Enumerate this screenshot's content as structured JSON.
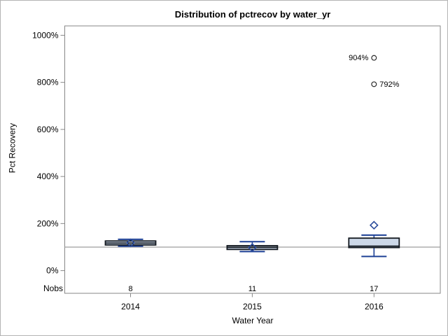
{
  "figure": {
    "title": "Distribution of pctrecov by water_yr"
  },
  "chart_data": {
    "type": "boxplot",
    "title": "Distribution of pctrecov by water_yr",
    "xlabel": "Water Year",
    "ylabel": "Pct Recovery",
    "categories": [
      "2014",
      "2015",
      "2016"
    ],
    "nobs_row_label": "Nobs",
    "nobs": [
      "8",
      "11",
      "17"
    ],
    "y_ticks": [
      0,
      200,
      400,
      600,
      800,
      1000
    ],
    "y_tick_labels": [
      "0%",
      "200%",
      "400%",
      "600%",
      "800%",
      "1000%"
    ],
    "ylim": [
      -95,
      1040
    ],
    "grid": false,
    "legend": "none",
    "reference_line": 100,
    "series": [
      {
        "category": "2014",
        "whisker_low": 104,
        "q1": 109,
        "median": 117,
        "q3": 126,
        "whisker_high": 133,
        "mean": 118,
        "outliers": []
      },
      {
        "category": "2015",
        "whisker_low": 81,
        "q1": 90,
        "median": 99,
        "q3": 106,
        "whisker_high": 123,
        "mean": 98,
        "outliers": []
      },
      {
        "category": "2016",
        "whisker_low": 60,
        "q1": 98,
        "median": 104,
        "q3": 138,
        "whisker_high": 151,
        "mean": 193,
        "outliers": [
          {
            "value": 904,
            "label": "904%",
            "label_side": "left"
          },
          {
            "value": 792,
            "label": "792%",
            "label_side": "right"
          }
        ]
      }
    ],
    "colors": {
      "box_fill": "#ccd8e8",
      "box_border": "#12181f",
      "median": "#12181f",
      "whisker": "#1d4095",
      "mean_marker": "#2a4b9b",
      "outlier": "#2e2e2e",
      "reference_line": "#9d9d9d",
      "frame": "#878787",
      "text": "#000000"
    }
  }
}
